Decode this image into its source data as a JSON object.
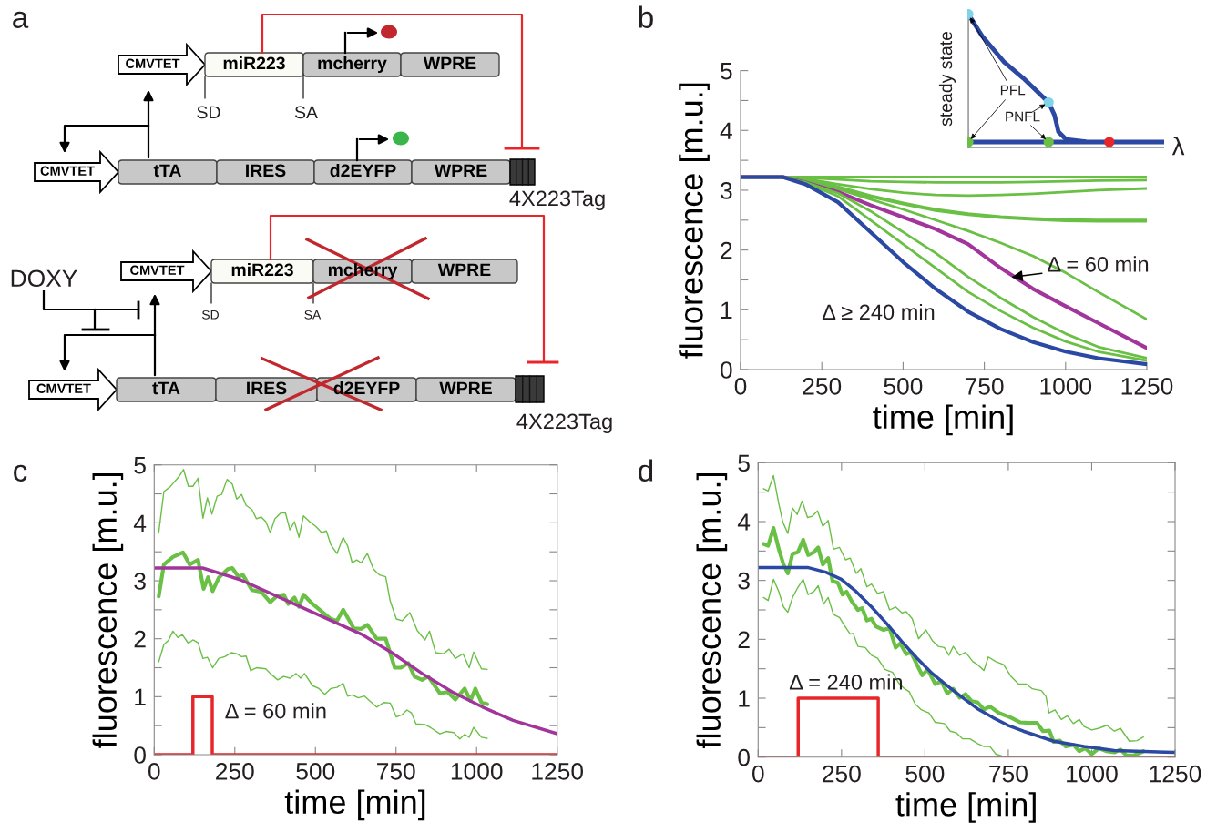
{
  "chart_data": [
    {
      "type": "other",
      "title": "a",
      "annotations": [
        "CMVTET",
        "miR223",
        "mcherry",
        "WPRE",
        "SD",
        "SA",
        "CMVTET",
        "tTA",
        "IRES",
        "d2EYFP",
        "WPRE",
        "4X223Tag",
        "CMVTET",
        "miR223",
        "mcherry",
        "WPRE",
        "SD",
        "SA",
        "DOXY",
        "CMVTET",
        "tTA",
        "IRES",
        "d2EYFP",
        "WPRE",
        "4X223Tag"
      ]
    },
    {
      "type": "line",
      "title": "b",
      "xlabel": "time [min]",
      "ylabel": "fluorescence [m.u.]",
      "xlim": [
        0,
        1250
      ],
      "ylim": [
        0,
        5
      ],
      "xticks": [
        0,
        250,
        500,
        750,
        1000,
        1250
      ],
      "yticks": [
        0,
        {
          "value": 0.5,
          "label": null
        },
        1,
        {
          "value": 1.5,
          "label": null
        },
        2,
        {
          "value": 2.5,
          "label": null
        },
        3,
        {
          "value": 3.5,
          "label": null
        },
        4,
        {
          "value": 4.5,
          "label": null
        },
        5
      ],
      "x": [
        0,
        130,
        200,
        300,
        400,
        500,
        600,
        700,
        800,
        900,
        1000,
        1100,
        1250
      ],
      "series": [
        {
          "color": "#6abf45",
          "values": [
            3.22,
            3.22,
            3.22,
            3.22,
            3.22,
            3.22,
            3.22,
            3.22,
            3.22,
            3.22,
            3.22,
            3.22,
            3.22
          ]
        },
        {
          "color": "#6abf45",
          "values": [
            3.22,
            3.22,
            3.21,
            3.18,
            3.15,
            3.14,
            3.13,
            3.13,
            3.13,
            3.14,
            3.15,
            3.16,
            3.17
          ]
        },
        {
          "color": "#6abf45",
          "values": [
            3.22,
            3.22,
            3.19,
            3.1,
            3.02,
            2.96,
            2.92,
            2.91,
            2.92,
            2.94,
            2.97,
            3.0,
            3.03
          ]
        },
        {
          "color": "#6abf45",
          "values": [
            3.22,
            3.22,
            3.17,
            3.05,
            2.9,
            2.78,
            2.67,
            2.6,
            2.55,
            2.52,
            2.5,
            2.49,
            2.49
          ]
        },
        {
          "color": "#6abf45",
          "values": [
            3.22,
            3.22,
            3.15,
            3.02,
            2.85,
            2.68,
            2.5,
            2.32,
            2.12,
            1.9,
            1.62,
            1.3,
            0.84
          ]
        },
        {
          "color": "#a2359b",
          "values": [
            3.22,
            3.22,
            3.13,
            2.97,
            2.75,
            2.55,
            2.35,
            2.1,
            1.7,
            1.35,
            1.06,
            0.78,
            0.36
          ]
        },
        {
          "color": "#6abf45",
          "values": [
            3.22,
            3.22,
            3.13,
            2.95,
            2.65,
            2.3,
            1.95,
            1.55,
            1.2,
            0.88,
            0.6,
            0.38,
            0.19
          ]
        },
        {
          "color": "#6abf45",
          "values": [
            3.22,
            3.22,
            3.12,
            2.9,
            2.5,
            2.1,
            1.7,
            1.3,
            0.98,
            0.7,
            0.47,
            0.3,
            0.15
          ]
        },
        {
          "color": "#2b49a3",
          "values": [
            3.22,
            3.22,
            3.1,
            2.8,
            2.3,
            1.8,
            1.35,
            0.97,
            0.68,
            0.46,
            0.3,
            0.19,
            0.09
          ]
        }
      ],
      "annotations": [
        {
          "text": "Δ = 60 min",
          "x": 826,
          "y": 1.54
        },
        "Δ ≥ 240 min",
        "steady state",
        "λ",
        "PFL",
        "PNFL"
      ]
    },
    {
      "type": "line",
      "title": "c",
      "xlabel": "time [min]",
      "ylabel": "fluorescence [m.u.]",
      "xlim": [
        0,
        1250
      ],
      "ylim": [
        0,
        5
      ],
      "xticks": [
        0,
        250,
        500,
        750,
        1000,
        1250
      ],
      "yticks": [
        0,
        {
          "value": 0.5,
          "label": null
        },
        1,
        {
          "value": 1.5,
          "label": null
        },
        2,
        {
          "value": 2.5,
          "label": null
        },
        3,
        {
          "value": 3.5,
          "label": null
        },
        4,
        {
          "value": 4.5,
          "label": null
        },
        5
      ],
      "series": [
        {
          "color": "#6abf45",
          "x": [
            14,
            30,
            49,
            77,
            91,
            106,
            120,
            136,
            151,
            165,
            179,
            195,
            209,
            226,
            242,
            256,
            271,
            285,
            303,
            317,
            332,
            346,
            360,
            374,
            393,
            407,
            421,
            435,
            449,
            463,
            482,
            501,
            520,
            534,
            548,
            567,
            586,
            600,
            614,
            628,
            642,
            661,
            680,
            699,
            718,
            732,
            751,
            769,
            793,
            816,
            840,
            854,
            873,
            897,
            915,
            934,
            958,
            977,
            991,
            1015,
            1033
          ],
          "values": [
            3.83,
            4.54,
            4.62,
            4.8,
            4.92,
            4.63,
            4.63,
            4.77,
            4.08,
            4.43,
            4.15,
            4.46,
            4.49,
            4.75,
            4.67,
            4.41,
            4.49,
            4.3,
            4.23,
            4.07,
            4.1,
            4.02,
            3.83,
            4.07,
            4.17,
            4.17,
            3.88,
            4.02,
            3.75,
            4.12,
            4.02,
            3.94,
            3.83,
            3.86,
            3.62,
            3.47,
            3.75,
            3.6,
            3.31,
            3.36,
            3.31,
            3.47,
            3.2,
            3.1,
            3.07,
            2.65,
            2.34,
            2.31,
            2.45,
            2.14,
            1.98,
            2.13,
            1.76,
            1.74,
            1.82,
            1.66,
            1.74,
            1.5,
            1.77,
            1.48,
            1.47
          ]
        },
        {
          "color": "#6abf45",
          "x": [
            14,
            30,
            44,
            58,
            73,
            87,
            106,
            120,
            136,
            151,
            165,
            181,
            200,
            219,
            240,
            256,
            271,
            285,
            299,
            317,
            346,
            360,
            383,
            402,
            421,
            440,
            454,
            466,
            491,
            511,
            529,
            548,
            567,
            586,
            600,
            614,
            633,
            652,
            690,
            713,
            732,
            751,
            769,
            784,
            798,
            812,
            840,
            859,
            886,
            905,
            929,
            948,
            963,
            977,
            991,
            1015,
            1033
          ],
          "values": [
            1.6,
            1.9,
            1.97,
            2.13,
            2.02,
            2.07,
            1.92,
            1.98,
            1.93,
            1.66,
            1.68,
            1.5,
            1.66,
            1.69,
            1.76,
            1.74,
            1.69,
            1.7,
            1.45,
            1.5,
            1.48,
            1.4,
            1.29,
            1.35,
            1.32,
            1.4,
            1.32,
            1.4,
            1.19,
            1.14,
            1.04,
            1.14,
            1.16,
            1.23,
            1.01,
            1.03,
            0.98,
            1.01,
            0.82,
            0.9,
            0.89,
            0.65,
            0.69,
            0.77,
            0.72,
            0.53,
            0.52,
            0.46,
            0.36,
            0.4,
            0.38,
            0.27,
            0.35,
            0.3,
            0.47,
            0.3,
            0.28
          ]
        },
        {
          "color": "#6abf45",
          "x": [
            14,
            30,
            58,
            89,
            110,
            136,
            153,
            167,
            181,
            200,
            228,
            242,
            261,
            275,
            303,
            332,
            360,
            379,
            402,
            416,
            435,
            449,
            463,
            491,
            520,
            548,
            567,
            586,
            619,
            642,
            661,
            690,
            718,
            746,
            765,
            788,
            807,
            831,
            850,
            886,
            910,
            934,
            963,
            981,
            996,
            1015,
            1033
          ],
          "values": [
            2.73,
            3.28,
            3.41,
            3.49,
            3.28,
            3.36,
            2.86,
            3.06,
            2.82,
            3.05,
            3.2,
            3.22,
            3.07,
            3.1,
            2.84,
            2.81,
            2.63,
            2.73,
            2.76,
            2.6,
            2.71,
            2.55,
            2.76,
            2.6,
            2.47,
            2.34,
            2.31,
            2.5,
            2.18,
            2.17,
            2.24,
            2.0,
            2.0,
            1.5,
            1.5,
            1.58,
            1.35,
            1.29,
            1.35,
            1.06,
            1.08,
            0.95,
            1.14,
            0.93,
            1.14,
            0.9,
            0.87
          ]
        },
        {
          "color": "#a2359b",
          "x": [
            0,
            150,
            266,
            454,
            642,
            737,
            831,
            925,
            1019,
            1113,
            1250
          ],
          "values": [
            3.22,
            3.22,
            3.02,
            2.55,
            2.08,
            1.76,
            1.4,
            1.08,
            0.82,
            0.59,
            0.36
          ]
        },
        {
          "color": "#e8262a",
          "x": [
            0,
            120,
            120,
            180,
            180,
            1250
          ],
          "values": [
            0,
            0,
            1,
            1,
            0,
            0
          ]
        }
      ],
      "annotations": [
        "Δ = 60 min"
      ]
    },
    {
      "type": "line",
      "title": "d",
      "xlabel": "time [min]",
      "ylabel": "fluorescence [m.u.]",
      "xlim": [
        0,
        1250
      ],
      "ylim": [
        0,
        5
      ],
      "xticks": [
        0,
        250,
        500,
        750,
        1000,
        1250
      ],
      "yticks": [
        0,
        {
          "value": 0.5,
          "label": null
        },
        1,
        {
          "value": 1.5,
          "label": null
        },
        2,
        {
          "value": 2.5,
          "label": null
        },
        3,
        {
          "value": 3.5,
          "label": null
        },
        4,
        {
          "value": 4.5,
          "label": null
        },
        5
      ],
      "series": [
        {
          "color": "#6abf45",
          "x": [
            16,
            30,
            46,
            62,
            74,
            89,
            103,
            117,
            132,
            148,
            162,
            178,
            194,
            210,
            226,
            244,
            262,
            276,
            294,
            308,
            326,
            340,
            358,
            376,
            394,
            412,
            431,
            444,
            462,
            481,
            503,
            522,
            540,
            558,
            572,
            585,
            604,
            622,
            644,
            658,
            677,
            690,
            713,
            736,
            758,
            781,
            804,
            822,
            849,
            863,
            872,
            890,
            909,
            927,
            945,
            963,
            977,
            1000,
            1022,
            1045,
            1068,
            1086,
            1113,
            1136,
            1155
          ],
          "values": [
            4.56,
            4.52,
            4.78,
            4.3,
            3.99,
            3.8,
            4.23,
            4.12,
            4.35,
            4.07,
            4.09,
            4.18,
            3.92,
            4.02,
            3.53,
            3.56,
            3.35,
            3.38,
            3.12,
            3.2,
            2.89,
            2.94,
            2.78,
            2.81,
            2.5,
            2.55,
            2.45,
            2.47,
            2.35,
            2.01,
            2.16,
            1.98,
            1.88,
            1.86,
            1.73,
            1.88,
            1.73,
            1.78,
            1.62,
            1.57,
            1.47,
            1.7,
            1.62,
            1.57,
            1.37,
            1.24,
            1.24,
            1.16,
            1.13,
            1.03,
            0.75,
            0.8,
            0.64,
            0.7,
            0.57,
            0.64,
            0.52,
            0.46,
            0.49,
            0.54,
            0.44,
            0.49,
            0.27,
            0.28,
            0.34
          ]
        },
        {
          "color": "#6abf45",
          "x": [
            16,
            30,
            46,
            62,
            76,
            89,
            103,
            117,
            135,
            150,
            167,
            180,
            196,
            210,
            226,
            244,
            258,
            276,
            285,
            299,
            321,
            340,
            358,
            380,
            403,
            421,
            439,
            453,
            471,
            490,
            512,
            531,
            558,
            576,
            595,
            613,
            635,
            658,
            677,
            695,
            713,
            731,
            758
          ],
          "values": [
            2.71,
            2.66,
            3.02,
            2.81,
            2.55,
            2.46,
            2.71,
            2.86,
            3.02,
            2.76,
            2.81,
            2.91,
            2.6,
            2.71,
            2.42,
            2.37,
            2.24,
            2.09,
            2.1,
            1.88,
            1.86,
            1.73,
            1.68,
            1.49,
            1.44,
            1.26,
            1.16,
            1.11,
            0.9,
            0.8,
            0.75,
            0.59,
            0.57,
            0.44,
            0.41,
            0.31,
            0.31,
            0.23,
            0.18,
            0.18,
            0.05,
            0.02,
            0
          ]
        },
        {
          "color": "#6abf45",
          "x": [
            16,
            30,
            46,
            62,
            76,
            89,
            103,
            119,
            135,
            150,
            167,
            180,
            194,
            210,
            223,
            239,
            253,
            265,
            280,
            299,
            312,
            326,
            340,
            353,
            376,
            394,
            412,
            426,
            444,
            458,
            476,
            492,
            508,
            531,
            549,
            567,
            585,
            604,
            622,
            640,
            658,
            677,
            695,
            722,
            758,
            786,
            813,
            836,
            854,
            873,
            886,
            904,
            922,
            945,
            963,
            981,
            1000,
            1022,
            1045,
            1068,
            1086,
            1104,
            1127,
            1155
          ],
          "values": [
            3.62,
            3.59,
            3.89,
            3.53,
            3.27,
            3.12,
            3.45,
            3.48,
            3.69,
            3.43,
            3.48,
            3.56,
            3.27,
            3.38,
            2.99,
            2.96,
            2.76,
            2.81,
            2.65,
            2.5,
            2.53,
            2.32,
            2.35,
            2.22,
            2.16,
            2.19,
            1.86,
            1.93,
            1.75,
            1.78,
            1.57,
            1.39,
            1.49,
            1.24,
            1.29,
            1.08,
            1.16,
            1.01,
            1.07,
            0.95,
            0.93,
            0.81,
            0.86,
            0.75,
            0.67,
            0.59,
            0.58,
            0.58,
            0.44,
            0.45,
            0.26,
            0.28,
            0.18,
            0.21,
            0.1,
            0.15,
            0.05,
            0.15,
            0.1,
            0.08,
            0.13,
            0.03,
            0.03,
            0.1
          ]
        },
        {
          "color": "#2b49a3",
          "x": [
            0,
            148,
            203,
            249,
            294,
            340,
            385,
            431,
            476,
            522,
            567,
            613,
            658,
            704,
            749,
            795,
            886,
            977,
            1068,
            1250
          ],
          "values": [
            3.22,
            3.22,
            3.14,
            3.02,
            2.81,
            2.55,
            2.27,
            1.96,
            1.68,
            1.42,
            1.21,
            1.01,
            0.82,
            0.67,
            0.54,
            0.44,
            0.27,
            0.18,
            0.11,
            0.08
          ]
        },
        {
          "color": "#e8262a",
          "x": [
            0,
            120,
            120,
            360,
            360,
            1250
          ],
          "values": [
            0,
            0,
            1,
            1,
            0,
            0
          ]
        }
      ],
      "annotations": [
        "Δ = 240 min"
      ]
    }
  ]
}
